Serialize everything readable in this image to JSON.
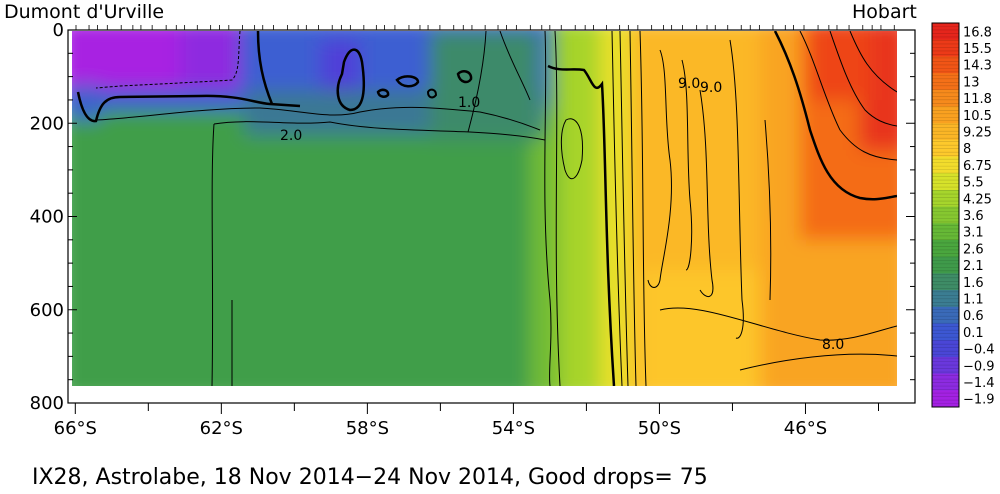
{
  "header": {
    "left_station": "Dumont d'Urville",
    "right_station": "Hobart"
  },
  "caption": "IX28, Astrolabe, 18 Nov 2014−24 Nov 2014, Good drops= 75",
  "chart_data": {
    "type": "heatmap",
    "variable": "temperature section",
    "x_axis": {
      "ticks": [
        -66,
        -62,
        -58,
        -54,
        -50,
        -46
      ],
      "tick_labels": [
        "66°S",
        "62°S",
        "58°S",
        "54°S",
        "50°S",
        "46°S"
      ],
      "range": [
        -66.2,
        -43.0
      ]
    },
    "y_axis": {
      "ticks": [
        0,
        200,
        400,
        600,
        800
      ],
      "tick_labels": [
        "0",
        "200",
        "400",
        "600",
        "800"
      ],
      "range": [
        0,
        800
      ],
      "inverted": true
    },
    "colorbar": {
      "levels": [
        16.8,
        15.5,
        14.3,
        13,
        11.8,
        10.5,
        9.25,
        8,
        6.75,
        5.5,
        4.25,
        3.6,
        3.1,
        2.6,
        2.1,
        1.6,
        1.1,
        0.6,
        0.1,
        -0.4,
        -0.9,
        -1.4,
        -1.9
      ],
      "labels": [
        "16.8",
        "15.5",
        "14.3",
        "13",
        "11.8",
        "10.5",
        "9.25",
        "8",
        "6.75",
        "5.5",
        "4.25",
        "3.6",
        "3.1",
        "2.6",
        "2.1",
        "1.6",
        "1.1",
        "0.6",
        "0.1",
        "−0.4",
        "−0.9",
        "−1.4",
        "−1.9"
      ],
      "colors": [
        "#e5251c",
        "#ec3a18",
        "#f15516",
        "#f47018",
        "#f68a1c",
        "#f9a120",
        "#fbb626",
        "#fdc92c",
        "#f2dc2c",
        "#d6e22a",
        "#a6d52c",
        "#86c730",
        "#66b836",
        "#4aa63e",
        "#3f9a4a",
        "#3e8c66",
        "#3b7d92",
        "#3a6ab8",
        "#3c57d2",
        "#4a46d6",
        "#6a38dc",
        "#8c2be0",
        "#a321e2"
      ]
    },
    "contour_labels": [
      {
        "text": "1.0",
        "value": 1.0,
        "lat": -55.5,
        "depth": 150
      },
      {
        "text": "2.0",
        "value": 2.0,
        "lat": -60.7,
        "depth": 220
      },
      {
        "text": "9.0",
        "value": 9.0,
        "lat": -49.6,
        "depth": 115
      },
      {
        "text": "9.0",
        "value": 9.0,
        "lat": -49.0,
        "depth": 120
      },
      {
        "text": "8.0",
        "value": 8.0,
        "lat": -45.7,
        "depth": 670
      }
    ]
  }
}
